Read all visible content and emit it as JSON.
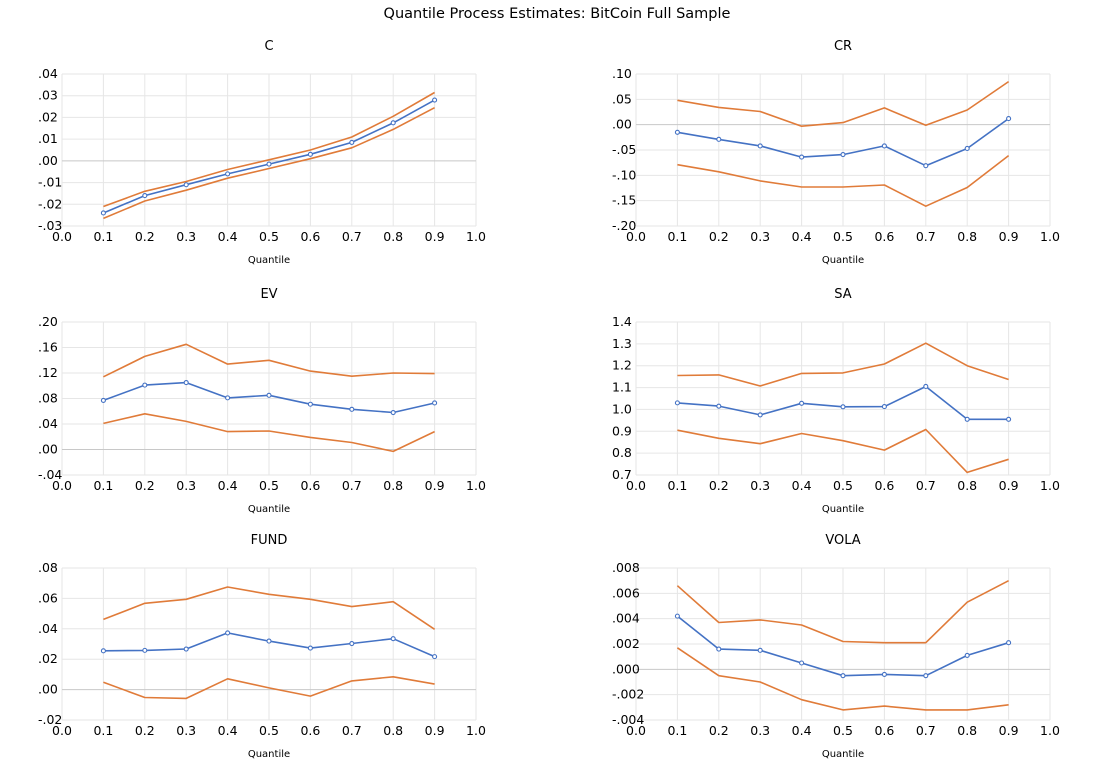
{
  "figure": {
    "title": "Quantile Process Estimates: BitCoin Full Sample"
  },
  "colors": {
    "estimate": "#4472c4",
    "band": "#e07b39",
    "grid": "#e6e6e6",
    "zero": "#c8c8c8"
  },
  "chart_data": [
    {
      "type": "line",
      "title": "C",
      "xlabel": "Quantile",
      "xlim": [
        0.0,
        1.0
      ],
      "xticks": [
        "0.0",
        "0.1",
        "0.2",
        "0.3",
        "0.4",
        "0.5",
        "0.6",
        "0.7",
        "0.8",
        "0.9",
        "1.0"
      ],
      "ylim": [
        -0.03,
        0.04
      ],
      "yticks": [
        -0.03,
        -0.02,
        -0.01,
        0.0,
        0.01,
        0.02,
        0.03,
        0.04
      ],
      "ytick_labels": [
        "-.03",
        "-.02",
        "-.01",
        ".00",
        ".01",
        ".02",
        ".03",
        ".04"
      ],
      "x": [
        0.1,
        0.2,
        0.3,
        0.4,
        0.5,
        0.6,
        0.7,
        0.8,
        0.9
      ],
      "series": [
        {
          "role": "estimate",
          "markers": true,
          "values": [
            -0.024,
            -0.016,
            -0.011,
            -0.006,
            -0.0015,
            0.003,
            0.0085,
            0.0175,
            0.028
          ]
        },
        {
          "role": "upper",
          "markers": false,
          "values": [
            -0.021,
            -0.014,
            -0.0095,
            -0.004,
            0.0005,
            0.005,
            0.011,
            0.0205,
            0.0315
          ]
        },
        {
          "role": "lower",
          "markers": false,
          "values": [
            -0.0265,
            -0.0185,
            -0.0135,
            -0.008,
            -0.0035,
            0.001,
            0.006,
            0.0145,
            0.0245
          ]
        }
      ]
    },
    {
      "type": "line",
      "title": "CR",
      "xlabel": "Quantile",
      "xlim": [
        0.0,
        1.0
      ],
      "xticks": [
        "0.0",
        "0.1",
        "0.2",
        "0.3",
        "0.4",
        "0.5",
        "0.6",
        "0.7",
        "0.8",
        "0.9",
        "1.0"
      ],
      "ylim": [
        -0.2,
        0.1
      ],
      "yticks": [
        -0.2,
        -0.15,
        -0.1,
        -0.05,
        0.0,
        0.05,
        0.1
      ],
      "ytick_labels": [
        "-.20",
        "-.15",
        "-.10",
        "-.05",
        ".00",
        ".05",
        ".10"
      ],
      "x": [
        0.1,
        0.2,
        0.3,
        0.4,
        0.5,
        0.6,
        0.7,
        0.8,
        0.9
      ],
      "series": [
        {
          "role": "estimate",
          "markers": true,
          "values": [
            -0.015,
            -0.029,
            -0.042,
            -0.064,
            -0.059,
            -0.042,
            -0.081,
            -0.047,
            0.012
          ]
        },
        {
          "role": "upper",
          "markers": false,
          "values": [
            0.048,
            0.034,
            0.026,
            -0.003,
            0.004,
            0.033,
            -0.001,
            0.029,
            0.085
          ]
        },
        {
          "role": "lower",
          "markers": false,
          "values": [
            -0.079,
            -0.093,
            -0.111,
            -0.123,
            -0.123,
            -0.119,
            -0.161,
            -0.124,
            -0.061
          ]
        }
      ]
    },
    {
      "type": "line",
      "title": "EV",
      "xlabel": "Quantile",
      "xlim": [
        0.0,
        1.0
      ],
      "xticks": [
        "0.0",
        "0.1",
        "0.2",
        "0.3",
        "0.4",
        "0.5",
        "0.6",
        "0.7",
        "0.8",
        "0.9",
        "1.0"
      ],
      "ylim": [
        -0.04,
        0.2
      ],
      "yticks": [
        -0.04,
        0.0,
        0.04,
        0.08,
        0.12,
        0.16,
        0.2
      ],
      "ytick_labels": [
        "-.04",
        ".00",
        ".04",
        ".08",
        ".12",
        ".16",
        ".20"
      ],
      "x": [
        0.1,
        0.2,
        0.3,
        0.4,
        0.5,
        0.6,
        0.7,
        0.8,
        0.9
      ],
      "series": [
        {
          "role": "estimate",
          "markers": true,
          "values": [
            0.077,
            0.101,
            0.105,
            0.081,
            0.085,
            0.071,
            0.063,
            0.058,
            0.073
          ]
        },
        {
          "role": "upper",
          "markers": false,
          "values": [
            0.114,
            0.146,
            0.165,
            0.134,
            0.14,
            0.123,
            0.115,
            0.12,
            0.119
          ]
        },
        {
          "role": "lower",
          "markers": false,
          "values": [
            0.041,
            0.056,
            0.044,
            0.028,
            0.029,
            0.019,
            0.011,
            -0.003,
            0.028
          ]
        }
      ]
    },
    {
      "type": "line",
      "title": "SA",
      "xlabel": "Quantile",
      "xlim": [
        0.0,
        1.0
      ],
      "xticks": [
        "0.0",
        "0.1",
        "0.2",
        "0.3",
        "0.4",
        "0.5",
        "0.6",
        "0.7",
        "0.8",
        "0.9",
        "1.0"
      ],
      "ylim": [
        0.7,
        1.4
      ],
      "yticks": [
        0.7,
        0.8,
        0.9,
        1.0,
        1.1,
        1.2,
        1.3,
        1.4
      ],
      "ytick_labels": [
        "0.7",
        "0.8",
        "0.9",
        "1.0",
        "1.1",
        "1.2",
        "1.3",
        "1.4"
      ],
      "x": [
        0.1,
        0.2,
        0.3,
        0.4,
        0.5,
        0.6,
        0.7,
        0.8,
        0.9
      ],
      "series": [
        {
          "role": "estimate",
          "markers": true,
          "values": [
            1.03,
            1.015,
            0.975,
            1.028,
            1.012,
            1.013,
            1.105,
            0.955,
            0.955
          ]
        },
        {
          "role": "upper",
          "markers": false,
          "values": [
            1.155,
            1.158,
            1.107,
            1.165,
            1.167,
            1.208,
            1.303,
            1.2,
            1.137
          ]
        },
        {
          "role": "lower",
          "markers": false,
          "values": [
            0.905,
            0.868,
            0.843,
            0.89,
            0.857,
            0.814,
            0.908,
            0.712,
            0.772
          ]
        }
      ]
    },
    {
      "type": "line",
      "title": "FUND",
      "xlabel": "Quantile",
      "xlim": [
        0.0,
        1.0
      ],
      "xticks": [
        "0.0",
        "0.1",
        "0.2",
        "0.3",
        "0.4",
        "0.5",
        "0.6",
        "0.7",
        "0.8",
        "0.9",
        "1.0"
      ],
      "ylim": [
        -0.02,
        0.08
      ],
      "yticks": [
        -0.02,
        0.0,
        0.02,
        0.04,
        0.06,
        0.08
      ],
      "ytick_labels": [
        "-.02",
        ".00",
        ".02",
        ".04",
        ".06",
        ".08"
      ],
      "x": [
        0.1,
        0.2,
        0.3,
        0.4,
        0.5,
        0.6,
        0.7,
        0.8,
        0.9
      ],
      "series": [
        {
          "role": "estimate",
          "markers": true,
          "values": [
            0.0255,
            0.0258,
            0.0267,
            0.0373,
            0.0319,
            0.0273,
            0.0303,
            0.0335,
            0.0217
          ]
        },
        {
          "role": "upper",
          "markers": false,
          "values": [
            0.0462,
            0.0568,
            0.0594,
            0.0675,
            0.0627,
            0.0594,
            0.0546,
            0.0578,
            0.0397
          ]
        },
        {
          "role": "lower",
          "markers": false,
          "values": [
            0.0048,
            -0.0052,
            -0.0058,
            0.0071,
            0.0011,
            -0.0043,
            0.0057,
            0.0084,
            0.0036
          ]
        }
      ]
    },
    {
      "type": "line",
      "title": "VOLA",
      "xlabel": "Quantile",
      "xlim": [
        0.0,
        1.0
      ],
      "xticks": [
        "0.0",
        "0.1",
        "0.2",
        "0.3",
        "0.4",
        "0.5",
        "0.6",
        "0.7",
        "0.8",
        "0.9",
        "1.0"
      ],
      "ylim": [
        -0.004,
        0.008
      ],
      "yticks": [
        -0.004,
        -0.002,
        0.0,
        0.002,
        0.004,
        0.006,
        0.008
      ],
      "ytick_labels": [
        "-.004",
        "-.002",
        ".000",
        ".002",
        ".004",
        ".006",
        ".008"
      ],
      "x": [
        0.1,
        0.2,
        0.3,
        0.4,
        0.5,
        0.6,
        0.7,
        0.8,
        0.9
      ],
      "series": [
        {
          "role": "estimate",
          "markers": true,
          "values": [
            0.0042,
            0.0016,
            0.0015,
            0.0005,
            -0.0005,
            -0.0004,
            -0.0005,
            0.0011,
            0.0021
          ]
        },
        {
          "role": "upper",
          "markers": false,
          "values": [
            0.0066,
            0.0037,
            0.0039,
            0.0035,
            0.0022,
            0.0021,
            0.0021,
            0.0053,
            0.007
          ]
        },
        {
          "role": "lower",
          "markers": false,
          "values": [
            0.0017,
            -0.0005,
            -0.001,
            -0.0024,
            -0.0032,
            -0.0029,
            -0.0032,
            -0.0032,
            -0.0028
          ]
        }
      ]
    }
  ]
}
